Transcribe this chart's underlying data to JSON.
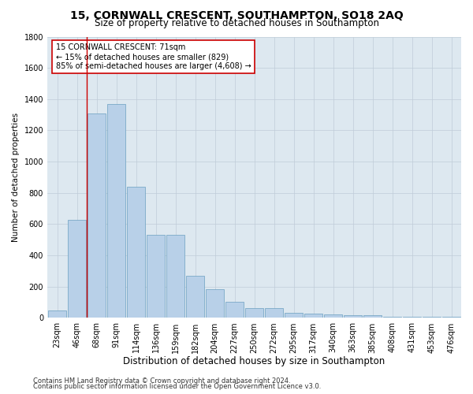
{
  "title": "15, CORNWALL CRESCENT, SOUTHAMPTON, SO18 2AQ",
  "subtitle": "Size of property relative to detached houses in Southampton",
  "xlabel": "Distribution of detached houses by size in Southampton",
  "ylabel": "Number of detached properties",
  "categories": [
    "23sqm",
    "46sqm",
    "68sqm",
    "91sqm",
    "114sqm",
    "136sqm",
    "159sqm",
    "182sqm",
    "204sqm",
    "227sqm",
    "250sqm",
    "272sqm",
    "295sqm",
    "317sqm",
    "340sqm",
    "363sqm",
    "385sqm",
    "408sqm",
    "431sqm",
    "453sqm",
    "476sqm"
  ],
  "values": [
    50,
    630,
    1310,
    1370,
    840,
    530,
    530,
    270,
    185,
    105,
    65,
    65,
    35,
    30,
    25,
    20,
    15,
    5,
    5,
    5,
    5
  ],
  "bar_color": "#b8d0e8",
  "bar_edge_color": "#6a9fc0",
  "ylim": [
    0,
    1800
  ],
  "yticks": [
    0,
    200,
    400,
    600,
    800,
    1000,
    1200,
    1400,
    1600,
    1800
  ],
  "vline_x": 1.5,
  "vline_color": "#cc0000",
  "annotation_text": "15 CORNWALL CRESCENT: 71sqm\n← 15% of detached houses are smaller (829)\n85% of semi-detached houses are larger (4,608) →",
  "annotation_box_color": "#ffffff",
  "annotation_box_edge": "#cc0000",
  "footer1": "Contains HM Land Registry data © Crown copyright and database right 2024.",
  "footer2": "Contains public sector information licensed under the Open Government Licence v3.0.",
  "bg_color": "#ffffff",
  "axes_bg_color": "#dde8f0",
  "grid_color": "#c0ccd8",
  "title_fontsize": 10,
  "subtitle_fontsize": 8.5,
  "xlabel_fontsize": 8.5,
  "ylabel_fontsize": 7.5,
  "tick_fontsize": 7,
  "annot_fontsize": 7,
  "footer_fontsize": 6
}
